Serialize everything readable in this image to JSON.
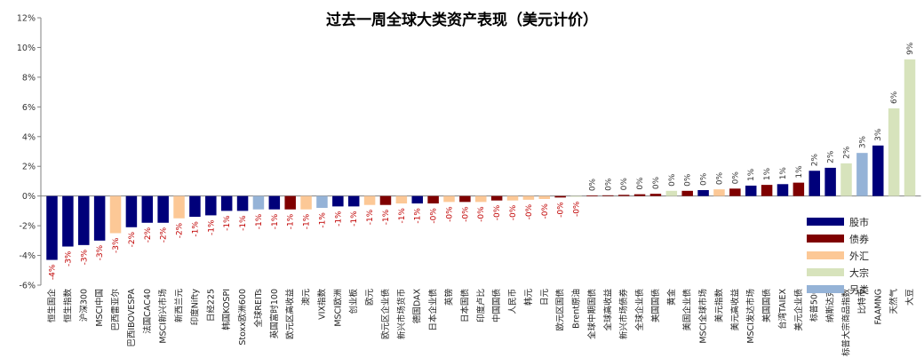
{
  "chart_data": {
    "type": "bar",
    "title": "过去一周全球大类资产表现（美元计价）",
    "ylim": [
      -6,
      12
    ],
    "yticks": [
      "12%",
      "10%",
      "8%",
      "6%",
      "4%",
      "2%",
      "0%",
      "-2%",
      "-4%",
      "-6%"
    ],
    "ytick_values": [
      12,
      10,
      8,
      6,
      4,
      2,
      0,
      -2,
      -4,
      -6
    ],
    "grid": false,
    "legend_position": "bottom-right",
    "colors": {
      "股市": "#00007a",
      "债券": "#7f0000",
      "外汇": "#fcc896",
      "大宗": "#d7e3bc",
      "另类": "#95b3d7"
    },
    "legend": [
      {
        "label": "股市",
        "key": "股市"
      },
      {
        "label": "债券",
        "key": "债券"
      },
      {
        "label": "外汇",
        "key": "外汇"
      },
      {
        "label": "大宗",
        "key": "大宗"
      },
      {
        "label": "另类",
        "key": "另类"
      }
    ],
    "bars": [
      {
        "name": "恒生国企",
        "value": -4.3,
        "label": "-4%",
        "class": "股市"
      },
      {
        "name": "恒生指数",
        "value": -3.4,
        "label": "-3%",
        "class": "股市"
      },
      {
        "name": "沪深300",
        "value": -3.3,
        "label": "-3%",
        "class": "股市"
      },
      {
        "name": "MSCI中国",
        "value": -3.0,
        "label": "-3%",
        "class": "股市"
      },
      {
        "name": "巴西雷亚尔",
        "value": -2.5,
        "label": "-3%",
        "class": "外汇"
      },
      {
        "name": "巴西IBOVESPA",
        "value": -2.1,
        "label": "-2%",
        "class": "股市"
      },
      {
        "name": "法国CAC40",
        "value": -1.8,
        "label": "-2%",
        "class": "股市"
      },
      {
        "name": "MSCI新兴市场",
        "value": -1.8,
        "label": "-2%",
        "class": "股市"
      },
      {
        "name": "新西兰元",
        "value": -1.5,
        "label": "-2%",
        "class": "外汇"
      },
      {
        "name": "印度Nifty",
        "value": -1.4,
        "label": "-1%",
        "class": "股市"
      },
      {
        "name": "日经225",
        "value": -1.3,
        "label": "-1%",
        "class": "股市"
      },
      {
        "name": "韩国KOSPI",
        "value": -1.0,
        "label": "-1%",
        "class": "股市"
      },
      {
        "name": "Stoxx欧洲600",
        "value": -1.0,
        "label": "-1%",
        "class": "股市"
      },
      {
        "name": "全球REITs",
        "value": -0.9,
        "label": "-1%",
        "class": "另类"
      },
      {
        "name": "英国富时100",
        "value": -0.9,
        "label": "-1%",
        "class": "股市"
      },
      {
        "name": "欧元区高收益",
        "value": -0.9,
        "label": "-1%",
        "class": "债券"
      },
      {
        "name": "澳元",
        "value": -0.9,
        "label": "-1%",
        "class": "外汇"
      },
      {
        "name": "VIX指数",
        "value": -0.8,
        "label": "-1%",
        "class": "另类"
      },
      {
        "name": "MSCI欧洲",
        "value": -0.7,
        "label": "-1%",
        "class": "股市"
      },
      {
        "name": "创业板",
        "value": -0.7,
        "label": "-1%",
        "class": "股市"
      },
      {
        "name": "欧元",
        "value": -0.6,
        "label": "-1%",
        "class": "外汇"
      },
      {
        "name": "欧元区企业债",
        "value": -0.6,
        "label": "-1%",
        "class": "债券"
      },
      {
        "name": "新兴市场货币",
        "value": -0.5,
        "label": "-1%",
        "class": "外汇"
      },
      {
        "name": "德国DAX",
        "value": -0.5,
        "label": "-1%",
        "class": "股市"
      },
      {
        "name": "日本企业债",
        "value": -0.5,
        "label": "-0%",
        "class": "债券"
      },
      {
        "name": "英镑",
        "value": -0.4,
        "label": "-0%",
        "class": "外汇"
      },
      {
        "name": "日本国债",
        "value": -0.4,
        "label": "-0%",
        "class": "债券"
      },
      {
        "name": "印度卢比",
        "value": -0.4,
        "label": "-0%",
        "class": "外汇"
      },
      {
        "name": "中国国债",
        "value": -0.3,
        "label": "-0%",
        "class": "债券"
      },
      {
        "name": "人民币",
        "value": -0.3,
        "label": "-0%",
        "class": "外汇"
      },
      {
        "name": "韩元",
        "value": -0.25,
        "label": "-0%",
        "class": "外汇"
      },
      {
        "name": "日元",
        "value": -0.2,
        "label": "-0%",
        "class": "外汇"
      },
      {
        "name": "欧元区国债",
        "value": -0.1,
        "label": "-0%",
        "class": "债券"
      },
      {
        "name": "Brent原油",
        "value": -0.05,
        "label": "-0%",
        "class": "大宗"
      },
      {
        "name": "全球中期国债",
        "value": 0.03,
        "label": "0%",
        "class": "债券"
      },
      {
        "name": "全球高收益",
        "value": 0.05,
        "label": "0%",
        "class": "债券"
      },
      {
        "name": "新兴市场债券",
        "value": 0.08,
        "label": "0%",
        "class": "债券"
      },
      {
        "name": "全球企业债",
        "value": 0.12,
        "label": "0%",
        "class": "债券"
      },
      {
        "name": "美国国债",
        "value": 0.15,
        "label": "0%",
        "class": "债券"
      },
      {
        "name": "黄金",
        "value": 0.35,
        "label": "0%",
        "class": "大宗"
      },
      {
        "name": "美国企业债",
        "value": 0.35,
        "label": "0%",
        "class": "债券"
      },
      {
        "name": "MSCI全球市场",
        "value": 0.4,
        "label": "0%",
        "class": "股市"
      },
      {
        "name": "美元指数",
        "value": 0.45,
        "label": "0%",
        "class": "外汇"
      },
      {
        "name": "美元高收益",
        "value": 0.5,
        "label": "0%",
        "class": "债券"
      },
      {
        "name": "MSCI发达市场",
        "value": 0.7,
        "label": "1%",
        "class": "股市"
      },
      {
        "name": "美国国债",
        "value": 0.75,
        "label": "1%",
        "class": "债券"
      },
      {
        "name": "台湾TAIEX",
        "value": 0.8,
        "label": "1%",
        "class": "股市"
      },
      {
        "name": "美元企业债",
        "value": 0.9,
        "label": "1%",
        "class": "债券"
      },
      {
        "name": "标普500",
        "value": 1.7,
        "label": "2%",
        "class": "股市"
      },
      {
        "name": "纳斯达克",
        "value": 1.9,
        "label": "2%",
        "class": "股市"
      },
      {
        "name": "标普大宗商品指数",
        "value": 2.2,
        "label": "2%",
        "class": "大宗"
      },
      {
        "name": "比特币",
        "value": 2.9,
        "label": "3%",
        "class": "另类"
      },
      {
        "name": "FAAMNG",
        "value": 3.4,
        "label": "3%",
        "class": "股市"
      },
      {
        "name": "天然气",
        "value": 5.9,
        "label": "6%",
        "class": "大宗"
      },
      {
        "name": "大豆",
        "value": 9.2,
        "label": "9%",
        "class": "大宗"
      }
    ]
  }
}
